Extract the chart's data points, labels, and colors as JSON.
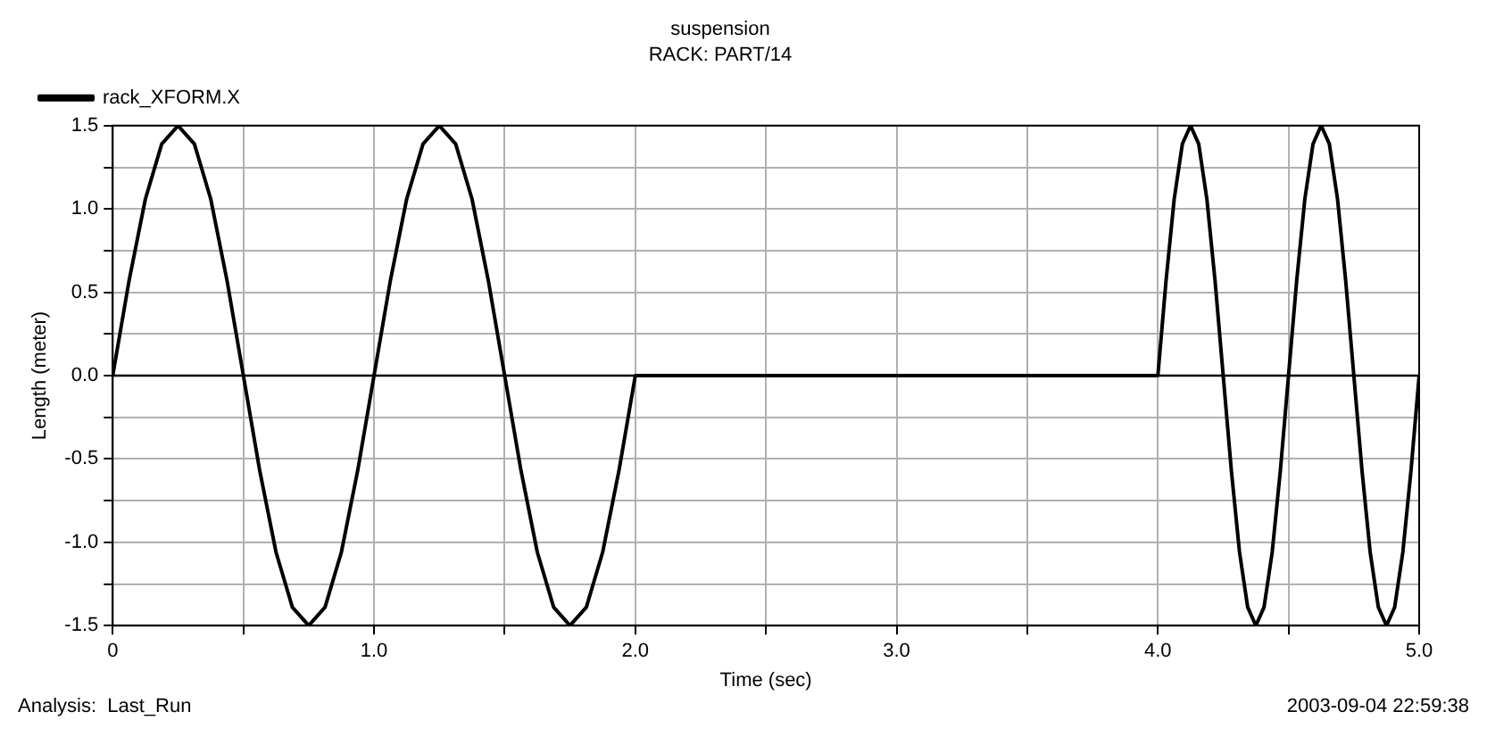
{
  "chart_data": {
    "type": "line",
    "title": "suspension",
    "subtitle": "RACK: PART/14",
    "xlabel": "Time (sec)",
    "ylabel": "Length (meter)",
    "annotations": [
      "Analysis:  Last_Run",
      "2003-09-04 22:59:38"
    ],
    "series": [
      {
        "name": "rack_XFORM.X",
        "color": "#000000",
        "x": [
          0,
          0.0625,
          0.125,
          0.1875,
          0.25,
          0.3125,
          0.375,
          0.4375,
          0.5,
          0.5625,
          0.625,
          0.6875,
          0.75,
          0.8125,
          0.875,
          0.9375,
          1,
          1.0625,
          1.125,
          1.1875,
          1.25,
          1.3125,
          1.375,
          1.4375,
          1.5,
          1.5625,
          1.625,
          1.6875,
          1.75,
          1.8125,
          1.875,
          1.9375,
          2,
          4,
          4.03125,
          4.0625,
          4.09375,
          4.125,
          4.15625,
          4.1875,
          4.21875,
          4.25,
          4.28125,
          4.3125,
          4.34375,
          4.375,
          4.40625,
          4.4375,
          4.46875,
          4.5,
          4.53125,
          4.5625,
          4.59375,
          4.625,
          4.65625,
          4.6875,
          4.71875,
          4.75,
          4.78125,
          4.8125,
          4.84375,
          4.875,
          4.90625,
          4.9375,
          4.96875,
          5
        ],
        "values": [
          0,
          0.57,
          1.06,
          1.39,
          1.5,
          1.39,
          1.06,
          0.57,
          0,
          -0.57,
          -1.06,
          -1.39,
          -1.5,
          -1.39,
          -1.06,
          -0.57,
          0,
          0.57,
          1.06,
          1.39,
          1.5,
          1.39,
          1.06,
          0.57,
          0,
          -0.57,
          -1.06,
          -1.39,
          -1.5,
          -1.39,
          -1.06,
          -0.57,
          0,
          0,
          0.57,
          1.06,
          1.39,
          1.5,
          1.39,
          1.06,
          0.57,
          0,
          -0.57,
          -1.06,
          -1.39,
          -1.5,
          -1.39,
          -1.06,
          -0.57,
          0,
          0.57,
          1.06,
          1.39,
          1.5,
          1.39,
          1.06,
          0.57,
          0,
          -0.57,
          -1.06,
          -1.39,
          -1.5,
          -1.39,
          -1.06,
          -0.57,
          0
        ]
      }
    ],
    "xlim": [
      0,
      5
    ],
    "xticks": [
      0,
      {
        "value": 0.5,
        "label": null
      },
      {
        "value": 1,
        "label": "1.0"
      },
      {
        "value": 1.5,
        "label": null
      },
      {
        "value": 2,
        "label": "2.0"
      },
      {
        "value": 2.5,
        "label": null
      },
      {
        "value": 3,
        "label": "3.0"
      },
      {
        "value": 3.5,
        "label": null
      },
      {
        "value": 4,
        "label": "4.0"
      },
      {
        "value": 4.5,
        "label": null
      },
      {
        "value": 5,
        "label": "5.0"
      }
    ],
    "ylim": [
      -1.5,
      1.5
    ],
    "yticks": [
      -1.5,
      {
        "value": -1.25,
        "label": null
      },
      {
        "value": -1,
        "label": "-1.0"
      },
      {
        "value": -0.75,
        "label": null
      },
      -0.5,
      {
        "value": -0.25,
        "label": null
      },
      {
        "value": 0,
        "label": "0.0"
      },
      {
        "value": 0.25,
        "label": null
      },
      0.5,
      {
        "value": 0.75,
        "label": null
      },
      {
        "value": 1,
        "label": "1.0"
      },
      {
        "value": 1.25,
        "label": null
      },
      1.5
    ],
    "ref_lines": [
      {
        "axis": "y",
        "value": 0,
        "color": "#000000"
      }
    ],
    "grid": true,
    "legend": "top left",
    "marker": "none",
    "line_style": "solid"
  }
}
